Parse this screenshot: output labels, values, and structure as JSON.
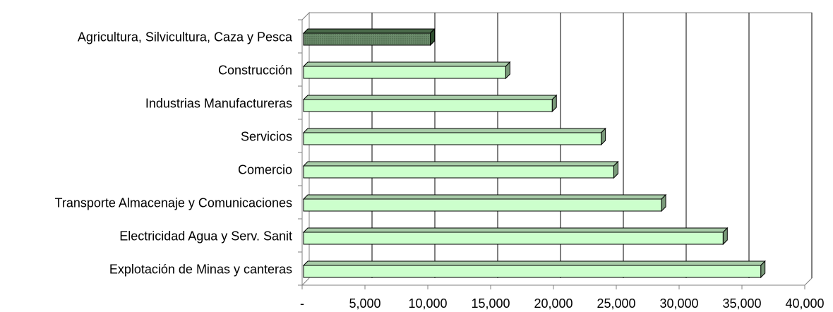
{
  "chart_data": {
    "type": "bar",
    "orientation": "horizontal",
    "style": "3d",
    "categories": [
      "Agricultura, Silvicultura, Caza y Pesca",
      "Construcción",
      "Industrias Manufactureras",
      "Servicios",
      "Comercio",
      "Transporte Almacenaje y Comunicaciones",
      "Electricidad Agua y Serv. Sanit",
      "Explotación de Minas y canteras"
    ],
    "values": [
      10200,
      16200,
      19900,
      23800,
      24800,
      28600,
      33500,
      36500
    ],
    "highlighted_category": "Agricultura, Silvicultura, Caza y Pesca",
    "xlim": [
      0,
      40000
    ],
    "x_ticks": [
      0,
      5000,
      10000,
      15000,
      20000,
      25000,
      30000,
      35000,
      40000
    ],
    "x_tick_labels": [
      "-",
      "5,000",
      "10,000",
      "15,000",
      "20,000",
      "25,000",
      "30,000",
      "35,000",
      "40,000"
    ],
    "grid": "vertical",
    "legend": "none",
    "colors": {
      "bar_fill": "#ccffcc",
      "bar_side": "#7a9a7a",
      "bar_top": "#a8cca8",
      "highlight_fill": "#5f7f5f",
      "highlight_side": "#2f4f2f",
      "highlight_top": "#4a6a4a",
      "grid": "#000000",
      "axis": "#808080"
    }
  }
}
